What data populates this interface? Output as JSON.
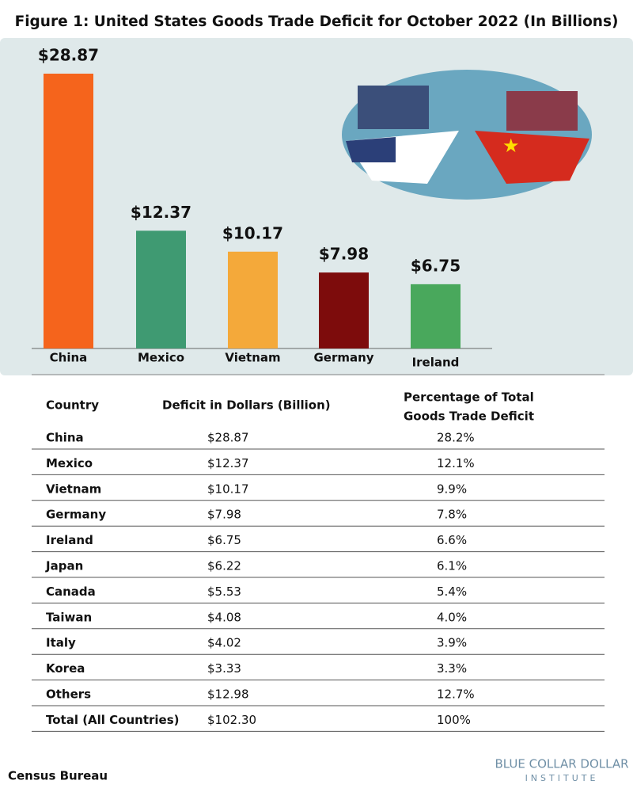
{
  "chart_data": {
    "type": "bar",
    "title": "Figure 1: United States Goods Trade Deficit for October 2022 (In Billions)",
    "categories": [
      "China",
      "Mexico",
      "Vietnam",
      "Germany",
      "Ireland"
    ],
    "values": [
      28.87,
      12.37,
      10.17,
      7.98,
      6.75
    ],
    "value_labels": [
      "$28.87",
      "$12.37",
      "$10.17",
      "$7.98",
      "$6.75"
    ],
    "colors": [
      "#f5641c",
      "#3f9a72",
      "#f4a93a",
      "#7d0c0c",
      "#49a85c"
    ]
  },
  "table": {
    "header": [
      "Country",
      "Deficit in Dollars (Billion)",
      [
        "Percentage of Total",
        "Goods Trade Deficit"
      ]
    ],
    "rows": [
      [
        "China",
        "$28.87",
        "28.2%"
      ],
      [
        "Mexico",
        "$12.37",
        "12.1%"
      ],
      [
        "Vietnam",
        "$10.17",
        "9.9%"
      ],
      [
        "Germany",
        "$7.98",
        "7.8%"
      ],
      [
        "Ireland",
        "$6.75",
        "6.6%"
      ],
      [
        "Japan",
        "$6.22",
        "6.1%"
      ],
      [
        "Canada",
        "$5.53",
        "5.4%"
      ],
      [
        "Taiwan",
        "$4.08",
        "4.0%"
      ],
      [
        "Italy",
        "$4.02",
        "3.9%"
      ],
      [
        "Korea",
        "$3.33",
        "3.3%"
      ],
      [
        "Others",
        "$12.98",
        "12.7%"
      ],
      [
        "Total (All Countries)",
        "$102.30",
        "100%"
      ]
    ]
  },
  "source": "Census Bureau",
  "logo": {
    "name": "BLUE COLLAR DOLLAR",
    "sub": "INSTITUTE"
  }
}
